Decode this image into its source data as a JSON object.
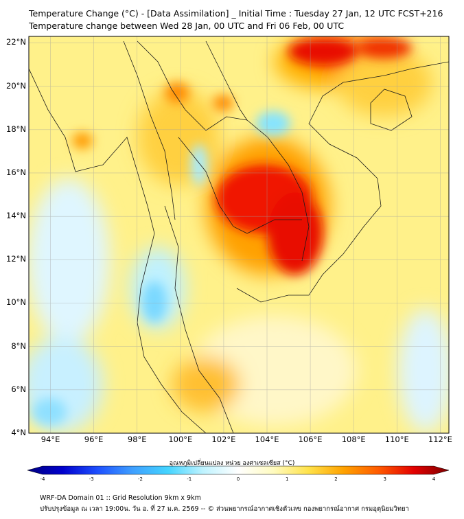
{
  "title_line1": "Temperature Change (°C) - [Data Assimilation] _ Initial Time : Tuesday 27 Jan, 12 UTC FCST+216",
  "title_line2": "Temperature change between Wed 28 Jan, 00 UTC and Fri 06 Feb, 00 UTC",
  "lat_labels": [
    "22°N",
    "20°N",
    "18°N",
    "16°N",
    "14°N",
    "12°N",
    "10°N",
    "8°N",
    "6°N",
    "4°N"
  ],
  "lon_labels": [
    "94°E",
    "96°E",
    "98°E",
    "100°E",
    "102°E",
    "104°E",
    "106°E",
    "108°E",
    "110°E",
    "112°E"
  ],
  "lat_values": [
    22,
    20,
    18,
    16,
    14,
    12,
    10,
    8,
    6,
    4
  ],
  "lon_values": [
    94,
    96,
    98,
    100,
    102,
    104,
    106,
    108,
    110,
    112
  ],
  "colorbar": {
    "label": "อุณหภูมิเปลี่ยนแปลง หน่วย องศาเซลเซียส (°C)",
    "ticks": [
      "-4",
      "-3",
      "-2",
      "-1",
      "0",
      "1",
      "2",
      "3",
      "4"
    ],
    "tick_values": [
      -4,
      -3,
      -2,
      -1,
      0,
      1,
      2,
      3,
      4
    ],
    "stops": [
      "#000080",
      "#0000cd",
      "#1e50ff",
      "#3fa0ff",
      "#44d4ff",
      "#bff3ff",
      "#ffffff",
      "#fffbc0",
      "#ffe24a",
      "#ffa200",
      "#ff5a00",
      "#e30000",
      "#7d0000"
    ]
  },
  "footer_line1": "WRF-DA Domain 01 :: Grid Resolution 9km x 9km",
  "footer_line2": "ปรับปรุงข้อมูล ณ เวลา 19:00น. วัน อ. ที่ 27 ม.ค. 2569 -- © ส่วนพยากรณ์อากาศเชิงตัวเลข กองพยากรณ์อากาศ กรมอุตุนิยมวิทยา"
}
